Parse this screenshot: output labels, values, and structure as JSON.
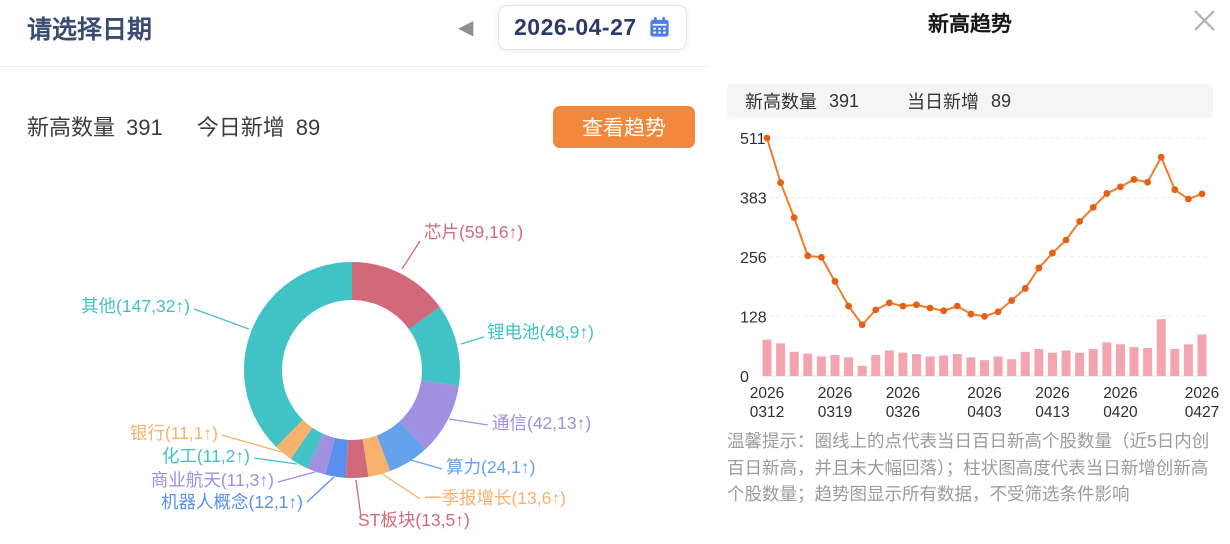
{
  "left_panel": {
    "title": "请选择日期",
    "date_picker": {
      "prev_arrow": "◀",
      "value": "2026-04-27"
    },
    "stats": {
      "high_label": "新高数量",
      "high_value": "391",
      "new_label": "今日新增",
      "new_value": "89"
    },
    "view_trend_button": "查看趋势"
  },
  "donut": {
    "total": 391,
    "slices": [
      {
        "label": "芯片(59,16↑)",
        "sector": "芯片",
        "value": 59,
        "new": 16,
        "color": "#d2697b"
      },
      {
        "label": "锂电池(48,9↑)",
        "sector": "锂电池",
        "value": 48,
        "new": 9,
        "color": "#41c2c5"
      },
      {
        "label": "通信(42,13↑)",
        "sector": "通信",
        "value": 42,
        "new": 13,
        "color": "#a18fe0"
      },
      {
        "label": "算力(24,1↑)",
        "sector": "算力",
        "value": 24,
        "new": 1,
        "color": "#66a2ec"
      },
      {
        "label": "一季报增长(13,6↑)",
        "sector": "一季报增长",
        "value": 13,
        "new": 6,
        "color": "#f6b16d"
      },
      {
        "label": "ST板块(13,5↑)",
        "sector": "ST板块",
        "value": 13,
        "new": 5,
        "color": "#d2697b"
      },
      {
        "label": "机器人概念(12,1↑)",
        "sector": "机器人概念",
        "value": 12,
        "new": 1,
        "color": "#5b8fee"
      },
      {
        "label": "商业航天(11,3↑)",
        "sector": "商业航天",
        "value": 11,
        "new": 3,
        "color": "#a18fe0"
      },
      {
        "label": "化工(11,2↑)",
        "sector": "化工",
        "value": 11,
        "new": 2,
        "color": "#41c2c5"
      },
      {
        "label": "银行(11,1↑)",
        "sector": "银行",
        "value": 11,
        "new": 1,
        "color": "#f6b16d"
      },
      {
        "label": "其他(147,32↑)",
        "sector": "其他",
        "value": 147,
        "new": 32,
        "color": "#41c2c5"
      }
    ]
  },
  "modal": {
    "title": "新高趋势",
    "stats": {
      "high_label": "新高数量",
      "high_value": "391",
      "new_label": "当日新增",
      "new_value": "89"
    },
    "tip": "温馨提示：圈线上的点代表当日百日新高个股数量（近5日内创百日新高，并且未大幅回落）；柱状图高度代表当日新增创新高个股数量；趋势图显示所有数据，不受筛选条件影响"
  },
  "chart_data": {
    "type": "line+bar",
    "title": "新高趋势",
    "ylim": [
      0,
      511
    ],
    "y_ticks": [
      511,
      383,
      256,
      128,
      0
    ],
    "grid": true,
    "legend_position": "none",
    "x_ticks": [
      {
        "year": "2026",
        "date": "0312",
        "index": 0
      },
      {
        "year": "2026",
        "date": "0319",
        "index": 5
      },
      {
        "year": "2026",
        "date": "0326",
        "index": 10
      },
      {
        "year": "2026",
        "date": "0403",
        "index": 16
      },
      {
        "year": "2026",
        "date": "0413",
        "index": 21
      },
      {
        "year": "2026",
        "date": "0420",
        "index": 26
      },
      {
        "year": "2026",
        "date": "0427",
        "index": 32
      }
    ],
    "series": [
      {
        "name": "当日百日新高个股数量",
        "type": "line",
        "color": "#ef7c2d",
        "point_color": "#e55f14",
        "values": [
          511,
          415,
          340,
          258,
          255,
          203,
          150,
          110,
          142,
          157,
          150,
          153,
          146,
          140,
          150,
          133,
          128,
          138,
          162,
          188,
          232,
          264,
          292,
          332,
          362,
          392,
          406,
          422,
          416,
          470,
          400,
          380,
          391
        ]
      },
      {
        "name": "当日新增创新高个股数量",
        "type": "bar",
        "color": "#f3a5af",
        "values": [
          78,
          70,
          52,
          48,
          42,
          45,
          40,
          22,
          45,
          55,
          50,
          47,
          42,
          44,
          47,
          40,
          34,
          42,
          36,
          52,
          58,
          50,
          55,
          50,
          58,
          72,
          68,
          62,
          60,
          122,
          58,
          68,
          89
        ]
      }
    ]
  }
}
